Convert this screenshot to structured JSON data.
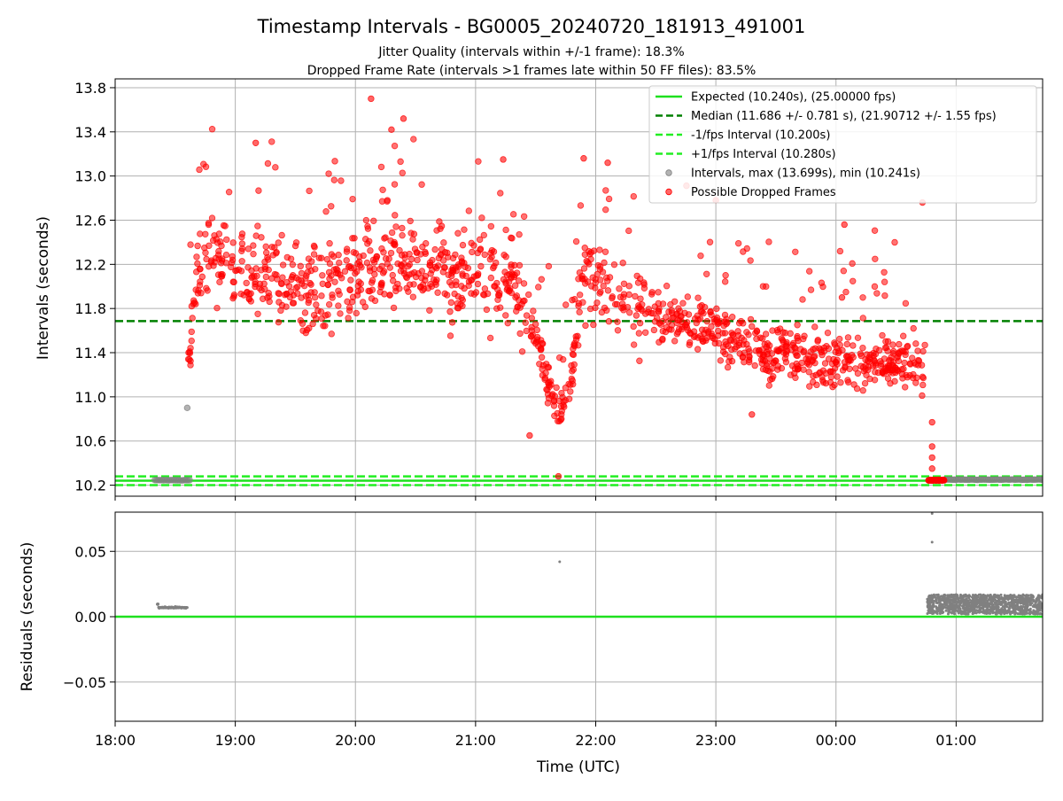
{
  "header": {
    "title": "Timestamp Intervals - BG0005_20240720_181913_491001",
    "subtitle_1": "Jitter Quality (intervals within +/-1 frame): 18.3%",
    "subtitle_2": "Dropped Frame Rate (intervals >1 frames late within 50 FF files): 83.5%"
  },
  "colors": {
    "expected": "#1ee01e",
    "median": "#008000",
    "bounds": "#22ee22",
    "normal_points": "#808080",
    "dropped_points": "#ff0000",
    "grid": "#b0b0b0"
  },
  "chart_data": [
    {
      "type": "scatter",
      "ylabel": "Intervals (seconds)",
      "ylim": [
        10.1,
        13.88
      ],
      "yticks": [
        "10.2",
        "10.6",
        "11.0",
        "11.4",
        "11.8",
        "12.2",
        "12.6",
        "13.0",
        "13.4",
        "13.8"
      ],
      "xlim_hours": [
        18.0,
        25.72
      ],
      "grid": true,
      "legend_position": "top-right",
      "legend": [
        {
          "label": "Expected (10.240s), (25.00000 fps)",
          "style": "solid-line",
          "color": "#1ee01e"
        },
        {
          "label": "Median (11.686 +/- 0.781 s), (21.90712 +/- 1.55 fps)",
          "style": "dashed-line",
          "color": "#008000"
        },
        {
          "label": "-1/fps Interval (10.200s)",
          "style": "dashed-line",
          "color": "#22ee22"
        },
        {
          "label": "+1/fps Interval (10.280s)",
          "style": "dashed-line",
          "color": "#22ee22"
        },
        {
          "label": "Intervals, max (13.699s), min (10.241s)",
          "style": "marker",
          "color": "#808080"
        },
        {
          "label": "Possible Dropped Frames",
          "style": "marker",
          "color": "#ff0000"
        }
      ],
      "lines": {
        "expected": 10.24,
        "median": 11.686,
        "lower": 10.2,
        "upper": 10.28
      },
      "normal_segments": [
        {
          "x_start": 18.33,
          "x_end": 18.62,
          "y": 10.245
        },
        {
          "x_start": 24.9,
          "x_end": 25.72,
          "y": 10.25
        }
      ],
      "normal_points": [
        {
          "x": 18.6,
          "y": 10.9
        }
      ],
      "dropped_trend": [
        {
          "x": 18.6,
          "y": 11.15
        },
        {
          "x": 18.66,
          "y": 12.0
        },
        {
          "x": 18.75,
          "y": 12.35
        },
        {
          "x": 19.0,
          "y": 12.2
        },
        {
          "x": 19.3,
          "y": 12.1
        },
        {
          "x": 19.6,
          "y": 11.95
        },
        {
          "x": 19.9,
          "y": 12.05
        },
        {
          "x": 20.2,
          "y": 12.25
        },
        {
          "x": 20.5,
          "y": 12.15
        },
        {
          "x": 20.8,
          "y": 12.1
        },
        {
          "x": 21.1,
          "y": 12.15
        },
        {
          "x": 21.3,
          "y": 12.05
        },
        {
          "x": 21.5,
          "y": 11.55
        },
        {
          "x": 21.62,
          "y": 11.05
        },
        {
          "x": 21.7,
          "y": 10.85
        },
        {
          "x": 21.8,
          "y": 11.2
        },
        {
          "x": 21.9,
          "y": 12.15
        },
        {
          "x": 22.0,
          "y": 12.05
        },
        {
          "x": 22.3,
          "y": 11.85
        },
        {
          "x": 22.6,
          "y": 11.75
        },
        {
          "x": 23.0,
          "y": 11.6
        },
        {
          "x": 23.3,
          "y": 11.45
        },
        {
          "x": 23.7,
          "y": 11.35
        },
        {
          "x": 24.1,
          "y": 11.3
        },
        {
          "x": 24.4,
          "y": 11.3
        },
        {
          "x": 24.7,
          "y": 11.3
        },
        {
          "x": 24.74,
          "y": 11.3
        }
      ],
      "dropped_extremes": [
        {
          "x": 20.13,
          "y": 13.7
        },
        {
          "x": 20.4,
          "y": 13.52
        },
        {
          "x": 20.3,
          "y": 13.42
        },
        {
          "x": 19.17,
          "y": 13.3
        },
        {
          "x": 22.1,
          "y": 13.12
        },
        {
          "x": 21.9,
          "y": 13.16
        },
        {
          "x": 21.23,
          "y": 13.15
        },
        {
          "x": 24.72,
          "y": 12.76
        },
        {
          "x": 24.07,
          "y": 12.56
        },
        {
          "x": 21.69,
          "y": 10.28
        },
        {
          "x": 23.3,
          "y": 10.84
        },
        {
          "x": 21.45,
          "y": 10.65
        },
        {
          "x": 24.8,
          "y": 10.77
        },
        {
          "x": 24.8,
          "y": 10.55
        },
        {
          "x": 24.8,
          "y": 10.45
        },
        {
          "x": 24.8,
          "y": 10.35
        },
        {
          "x": 24.05,
          "y": 11.9
        },
        {
          "x": 23.0,
          "y": 12.78
        }
      ],
      "dropped_tail": {
        "x_start": 24.77,
        "x_end": 24.9,
        "y": 10.245
      }
    },
    {
      "type": "scatter",
      "ylabel": "Residuals (seconds)",
      "ylim": [
        -0.08,
        0.08
      ],
      "yticks": [
        "−0.05",
        "0.00",
        "0.05"
      ],
      "ytick_values": [
        -0.05,
        0.0,
        0.05
      ],
      "xlabel": "Time (UTC)",
      "xticks": [
        "18:00",
        "19:00",
        "20:00",
        "21:00",
        "22:00",
        "23:00",
        "00:00",
        "01:00"
      ],
      "xtick_values": [
        18,
        19,
        20,
        21,
        22,
        23,
        24,
        25
      ],
      "zero_line": 0.0,
      "points": [
        {
          "x": 21.7,
          "y": 0.042
        },
        {
          "x": 24.8,
          "y": 0.057
        },
        {
          "x": 24.8,
          "y": 0.079
        }
      ],
      "early_cluster": {
        "x_start": 18.35,
        "x_end": 18.6,
        "y": 0.007
      },
      "late_band": {
        "x_start": 24.76,
        "x_end": 25.72,
        "y_min": 0.002,
        "y_max": 0.017
      }
    }
  ]
}
